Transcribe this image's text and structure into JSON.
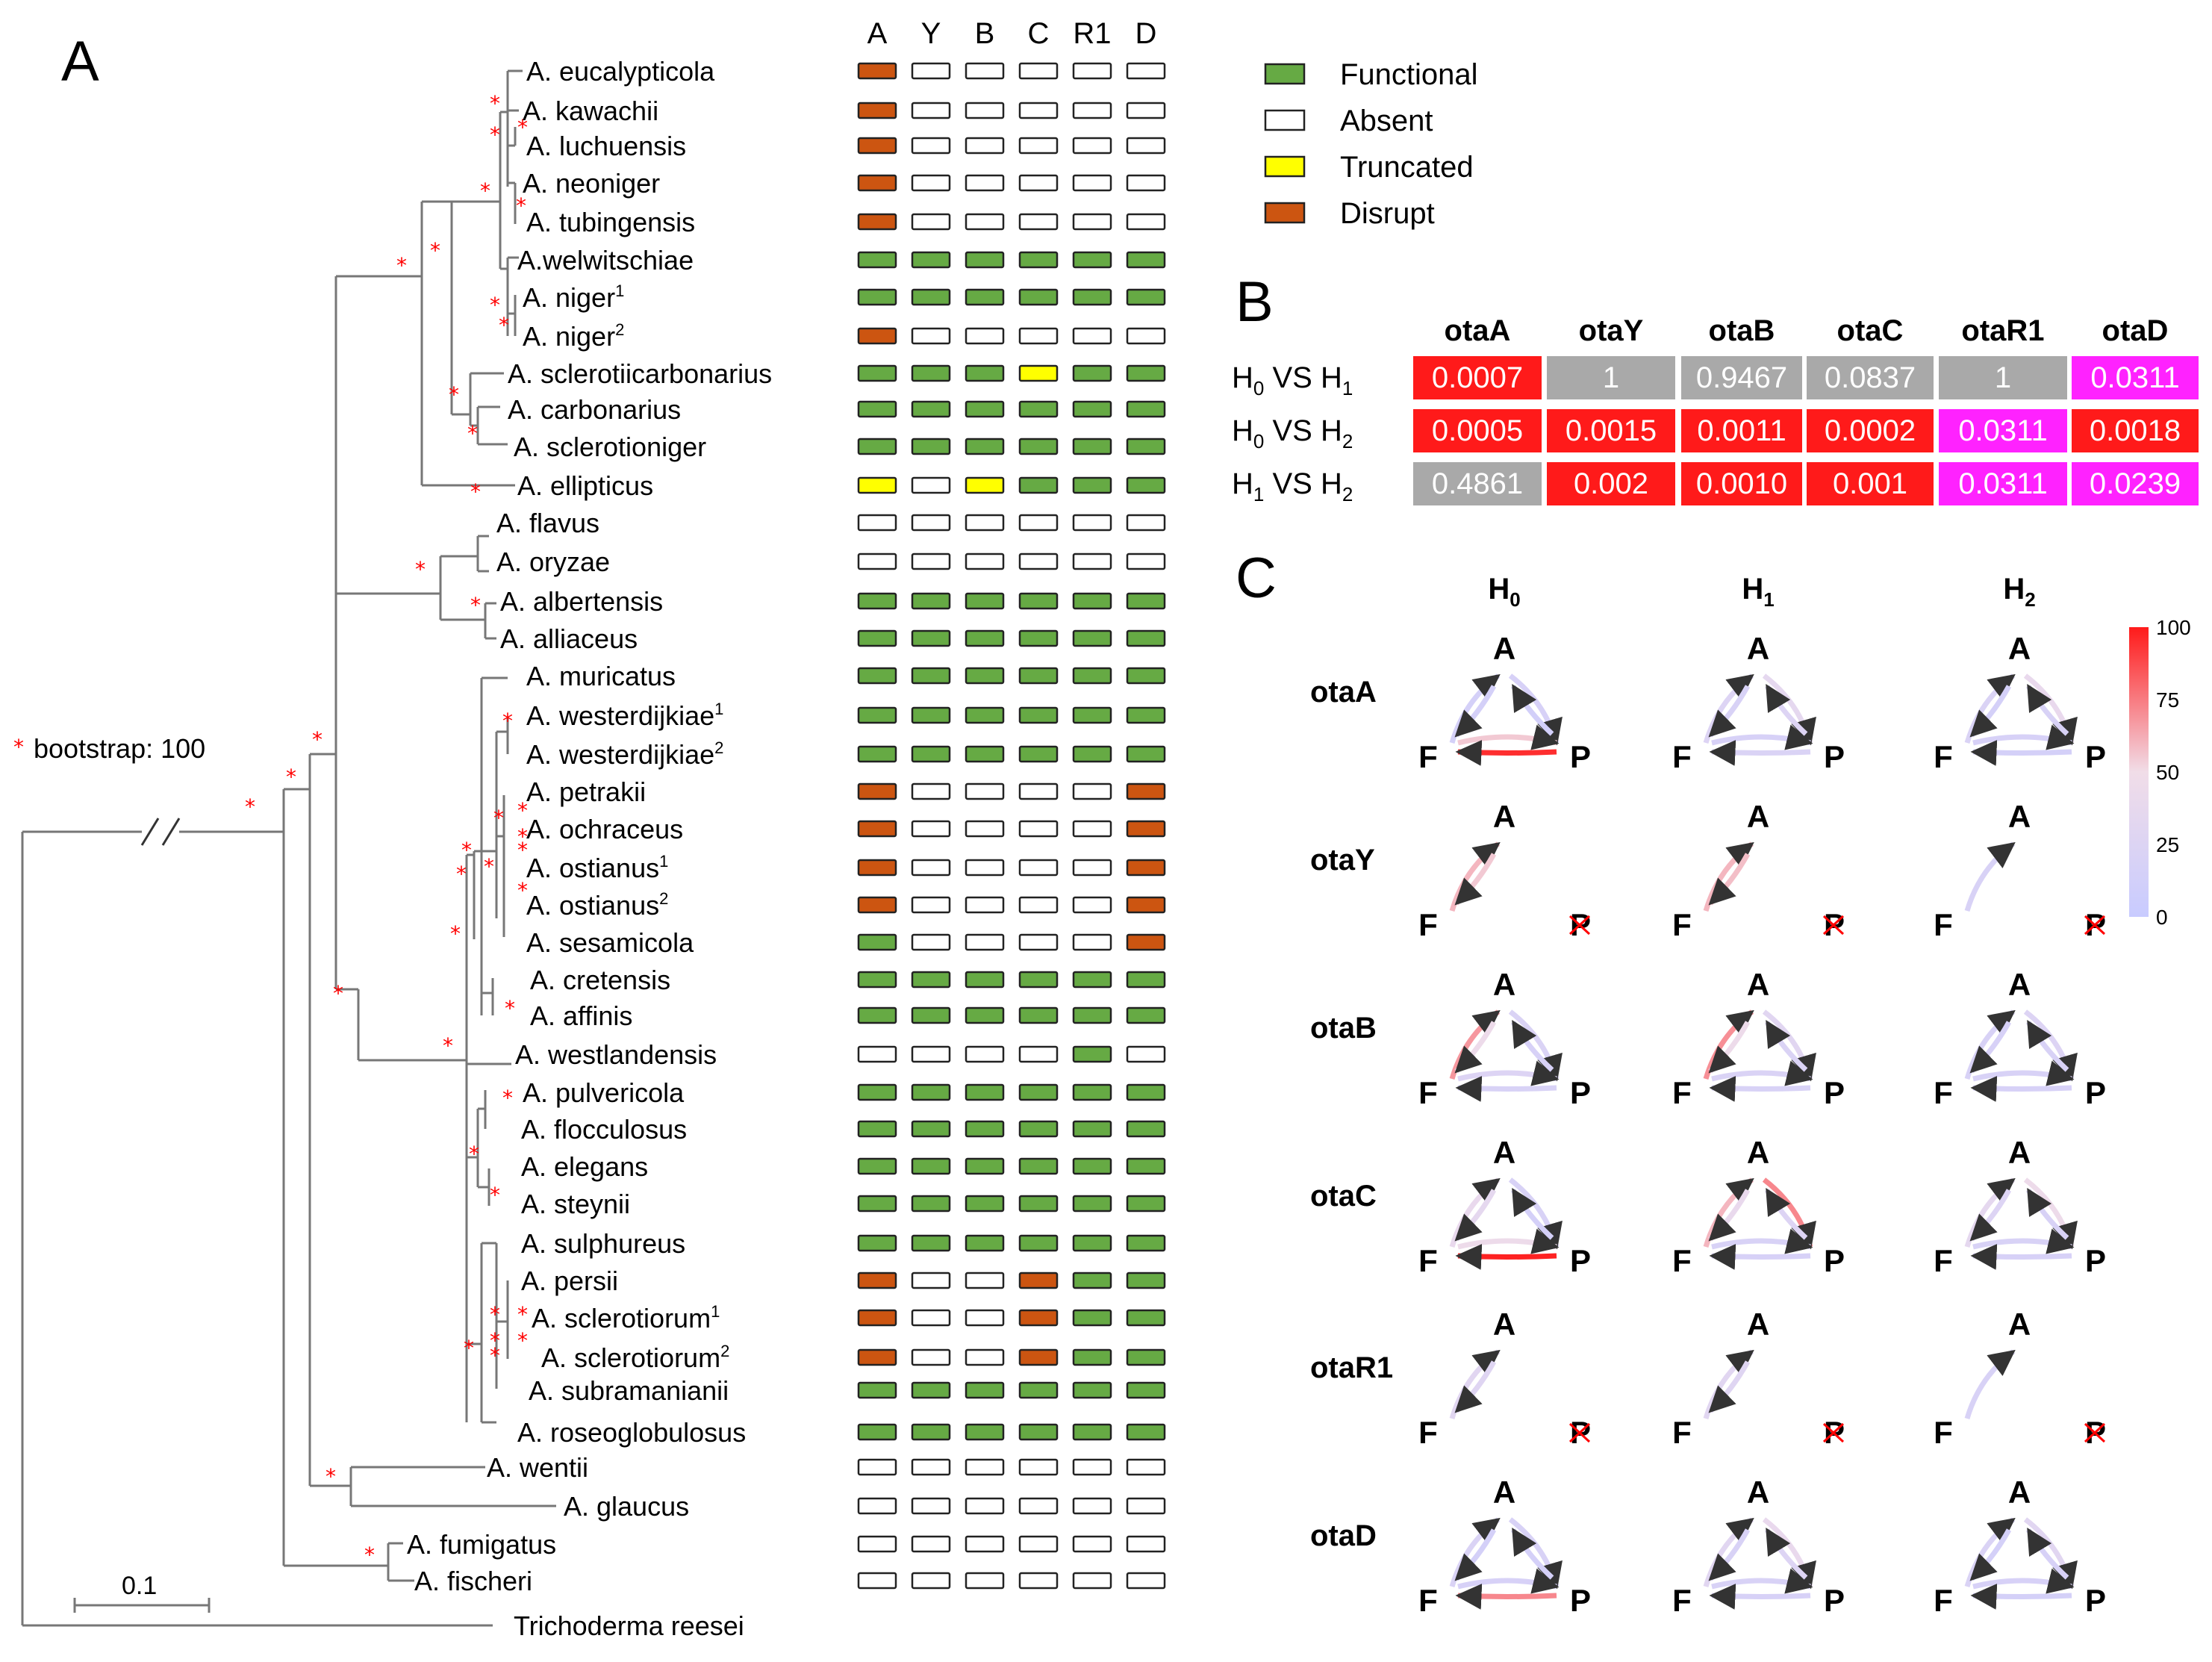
{
  "panels": {
    "a": "A",
    "b": "B",
    "c": "C"
  },
  "legend": {
    "bootstrap": "bootstrap: 100",
    "scale": "0.1",
    "items": [
      {
        "label": "Functional",
        "color": "#66aa44"
      },
      {
        "label": "Absent",
        "color": "#ffffff"
      },
      {
        "label": "Truncated",
        "color": "#ffff00"
      },
      {
        "label": "Disrupt",
        "color": "#cc5511"
      }
    ]
  },
  "status_colors": {
    "F": "#66aa44",
    "X": "#ffffff",
    "T": "#ffff00",
    "D": "#cc5511"
  },
  "gene_columns": [
    "A",
    "Y",
    "B",
    "C",
    "R1",
    "D"
  ],
  "taxa": [
    {
      "name": "A. eucalypticola",
      "sup": "",
      "status": [
        "D",
        "X",
        "X",
        "X",
        "X",
        "X"
      ]
    },
    {
      "name": "A. kawachii",
      "sup": "",
      "status": [
        "D",
        "X",
        "X",
        "X",
        "X",
        "X"
      ]
    },
    {
      "name": "A. luchuensis",
      "sup": "",
      "status": [
        "D",
        "X",
        "X",
        "X",
        "X",
        "X"
      ]
    },
    {
      "name": "A. neoniger",
      "sup": "",
      "status": [
        "D",
        "X",
        "X",
        "X",
        "X",
        "X"
      ]
    },
    {
      "name": "A. tubingensis",
      "sup": "",
      "status": [
        "D",
        "X",
        "X",
        "X",
        "X",
        "X"
      ]
    },
    {
      "name": "A.welwitschiae",
      "sup": "",
      "status": [
        "F",
        "F",
        "F",
        "F",
        "F",
        "F"
      ]
    },
    {
      "name": "A. niger",
      "sup": "1",
      "status": [
        "F",
        "F",
        "F",
        "F",
        "F",
        "F"
      ]
    },
    {
      "name": "A. niger",
      "sup": "2",
      "status": [
        "D",
        "X",
        "X",
        "X",
        "X",
        "X"
      ]
    },
    {
      "name": "A. sclerotiicarbonarius",
      "sup": "",
      "status": [
        "F",
        "F",
        "F",
        "T",
        "F",
        "F"
      ]
    },
    {
      "name": "A. carbonarius",
      "sup": "",
      "status": [
        "F",
        "F",
        "F",
        "F",
        "F",
        "F"
      ]
    },
    {
      "name": "A. sclerotioniger",
      "sup": "",
      "status": [
        "F",
        "F",
        "F",
        "F",
        "F",
        "F"
      ]
    },
    {
      "name": "A. ellipticus",
      "sup": "",
      "status": [
        "T",
        "X",
        "T",
        "F",
        "F",
        "F"
      ]
    },
    {
      "name": "A. flavus",
      "sup": "",
      "status": [
        "X",
        "X",
        "X",
        "X",
        "X",
        "X"
      ]
    },
    {
      "name": "A. oryzae",
      "sup": "",
      "status": [
        "X",
        "X",
        "X",
        "X",
        "X",
        "X"
      ]
    },
    {
      "name": "A. albertensis",
      "sup": "",
      "status": [
        "F",
        "F",
        "F",
        "F",
        "F",
        "F"
      ]
    },
    {
      "name": "A. alliaceus",
      "sup": "",
      "status": [
        "F",
        "F",
        "F",
        "F",
        "F",
        "F"
      ]
    },
    {
      "name": "A. muricatus",
      "sup": "",
      "status": [
        "F",
        "F",
        "F",
        "F",
        "F",
        "F"
      ]
    },
    {
      "name": "A. westerdijkiae",
      "sup": "1",
      "status": [
        "F",
        "F",
        "F",
        "F",
        "F",
        "F"
      ]
    },
    {
      "name": "A. westerdijkiae",
      "sup": "2",
      "status": [
        "F",
        "F",
        "F",
        "F",
        "F",
        "F"
      ]
    },
    {
      "name": "A. petrakii",
      "sup": "",
      "status": [
        "D",
        "X",
        "X",
        "X",
        "X",
        "D"
      ]
    },
    {
      "name": "A. ochraceus",
      "sup": "",
      "status": [
        "D",
        "X",
        "X",
        "X",
        "X",
        "D"
      ]
    },
    {
      "name": "A. ostianus",
      "sup": "1",
      "status": [
        "D",
        "X",
        "X",
        "X",
        "X",
        "D"
      ]
    },
    {
      "name": "A. ostianus",
      "sup": "2",
      "status": [
        "D",
        "X",
        "X",
        "X",
        "X",
        "D"
      ]
    },
    {
      "name": "A. sesamicola",
      "sup": "",
      "status": [
        "F",
        "X",
        "X",
        "X",
        "X",
        "D"
      ]
    },
    {
      "name": "A. cretensis",
      "sup": "",
      "status": [
        "F",
        "F",
        "F",
        "F",
        "F",
        "F"
      ]
    },
    {
      "name": "A. affinis",
      "sup": "",
      "status": [
        "F",
        "F",
        "F",
        "F",
        "F",
        "F"
      ]
    },
    {
      "name": "A. westlandensis",
      "sup": "",
      "status": [
        "X",
        "X",
        "X",
        "X",
        "F",
        "X"
      ]
    },
    {
      "name": "A. pulvericola",
      "sup": "",
      "status": [
        "F",
        "F",
        "F",
        "F",
        "F",
        "F"
      ]
    },
    {
      "name": "A. flocculosus",
      "sup": "",
      "status": [
        "F",
        "F",
        "F",
        "F",
        "F",
        "F"
      ]
    },
    {
      "name": "A. elegans",
      "sup": "",
      "status": [
        "F",
        "F",
        "F",
        "F",
        "F",
        "F"
      ]
    },
    {
      "name": "A. steynii",
      "sup": "",
      "status": [
        "F",
        "F",
        "F",
        "F",
        "F",
        "F"
      ]
    },
    {
      "name": "A. sulphureus",
      "sup": "",
      "status": [
        "F",
        "F",
        "F",
        "F",
        "F",
        "F"
      ]
    },
    {
      "name": "A. persii",
      "sup": "",
      "status": [
        "D",
        "X",
        "X",
        "D",
        "F",
        "F"
      ]
    },
    {
      "name": "A. sclerotiorum",
      "sup": "1",
      "status": [
        "D",
        "X",
        "X",
        "D",
        "F",
        "F"
      ]
    },
    {
      "name": "A. sclerotiorum",
      "sup": "2",
      "status": [
        "D",
        "X",
        "X",
        "D",
        "F",
        "F"
      ]
    },
    {
      "name": "A. subramanianii",
      "sup": "",
      "status": [
        "F",
        "F",
        "F",
        "F",
        "F",
        "F"
      ]
    },
    {
      "name": "A. roseoglobulosus",
      "sup": "",
      "status": [
        "F",
        "F",
        "F",
        "F",
        "F",
        "F"
      ]
    },
    {
      "name": "A. wentii",
      "sup": "",
      "status": [
        "X",
        "X",
        "X",
        "X",
        "X",
        "X"
      ]
    },
    {
      "name": "A. glaucus",
      "sup": "",
      "status": [
        "X",
        "X",
        "X",
        "X",
        "X",
        "X"
      ]
    },
    {
      "name": "A. fumigatus",
      "sup": "",
      "status": [
        "X",
        "X",
        "X",
        "X",
        "X",
        "X"
      ]
    },
    {
      "name": "A. fischeri",
      "sup": "",
      "status": [
        "X",
        "X",
        "X",
        "X",
        "X",
        "X"
      ]
    }
  ],
  "outgroup": "Trichoderma reesei",
  "table_b": {
    "columns": [
      "otaA",
      "otaY",
      "otaB",
      "otaC",
      "otaR1",
      "otaD"
    ],
    "rows": [
      {
        "label": {
          "a": "H",
          "a_sub": "0",
          "vs": " VS ",
          "b": "H",
          "b_sub": "1"
        },
        "values": [
          "0.0007",
          "1",
          "0.9467",
          "0.0837",
          "1",
          "0.0311"
        ],
        "colors": [
          "#ff1a1a",
          "#a9a9a9",
          "#a9a9a9",
          "#a9a9a9",
          "#a9a9a9",
          "#ff22ff"
        ]
      },
      {
        "label": {
          "a": "H",
          "a_sub": "0",
          "vs": " VS ",
          "b": "H",
          "b_sub": "2"
        },
        "values": [
          "0.0005",
          "0.0015",
          "0.0011",
          "0.0002",
          "0.0311",
          "0.0018"
        ],
        "colors": [
          "#ff1a1a",
          "#ff1a1a",
          "#ff1a1a",
          "#ff1a1a",
          "#ff22ff",
          "#ff1a1a"
        ]
      },
      {
        "label": {
          "a": "H",
          "a_sub": "1",
          "vs": " VS ",
          "b": "H",
          "b_sub": "2"
        },
        "values": [
          "0.4861",
          "0.002",
          "0.0010",
          "0.001",
          "0.0311",
          "0.0239"
        ],
        "colors": [
          "#a9a9a9",
          "#ff1a1a",
          "#ff1a1a",
          "#ff1a1a",
          "#ff22ff",
          "#ff22ff"
        ]
      }
    ]
  },
  "panel_c": {
    "models": [
      {
        "letter": "H",
        "sub": "0"
      },
      {
        "letter": "H",
        "sub": "1"
      },
      {
        "letter": "H",
        "sub": "2"
      }
    ],
    "node_labels": {
      "a": "A",
      "f": "F",
      "p": "P"
    },
    "colorbar": {
      "ticks": [
        "100",
        "75",
        "50",
        "25",
        "0"
      ],
      "min": 0,
      "max": 100
    },
    "genes": [
      {
        "name": "otaA",
        "models": [
          {
            "FA": 15,
            "AF": 15,
            "AP": 18,
            "PA": 12,
            "FP": 55,
            "PF": 95,
            "p_absent": false
          },
          {
            "FA": 25,
            "AF": 20,
            "AP": 35,
            "PA": 25,
            "FP": 18,
            "PF": 22,
            "p_absent": false
          },
          {
            "FA": 22,
            "AF": 15,
            "AP": 40,
            "PA": 20,
            "FP": 18,
            "PF": 15,
            "p_absent": false
          }
        ]
      },
      {
        "name": "otaY",
        "models": [
          {
            "FA": 60,
            "AF": 55,
            "AP": 0,
            "PA": 0,
            "FP": 0,
            "PF": 0,
            "p_absent": true
          },
          {
            "FA": 60,
            "AF": 58,
            "AP": 0,
            "PA": 0,
            "FP": 0,
            "PF": 0,
            "p_absent": true
          },
          {
            "FA": 20,
            "AF": 0,
            "AP": 0,
            "PA": 0,
            "FP": 0,
            "PF": 0,
            "p_absent": true
          }
        ]
      },
      {
        "name": "otaB",
        "models": [
          {
            "FA": 68,
            "AF": 45,
            "AP": 22,
            "PA": 18,
            "FP": 25,
            "PF": 20,
            "p_absent": false
          },
          {
            "FA": 70,
            "AF": 45,
            "AP": 30,
            "PA": 22,
            "FP": 22,
            "PF": 20,
            "p_absent": false
          },
          {
            "FA": 20,
            "AF": 18,
            "AP": 25,
            "PA": 20,
            "FP": 20,
            "PF": 18,
            "p_absent": false
          }
        ]
      },
      {
        "name": "otaC",
        "models": [
          {
            "FA": 40,
            "AF": 35,
            "AP": 20,
            "PA": 15,
            "FP": 45,
            "PF": 98,
            "p_absent": false
          },
          {
            "FA": 60,
            "AF": 40,
            "AP": 72,
            "PA": 25,
            "FP": 20,
            "PF": 18,
            "p_absent": false
          },
          {
            "FA": 35,
            "AF": 25,
            "AP": 45,
            "PA": 20,
            "FP": 20,
            "PF": 18,
            "p_absent": false
          }
        ]
      },
      {
        "name": "otaR1",
        "models": [
          {
            "FA": 30,
            "AF": 28,
            "AP": 0,
            "PA": 0,
            "FP": 0,
            "PF": 0,
            "p_absent": true
          },
          {
            "FA": 30,
            "AF": 28,
            "AP": 0,
            "PA": 0,
            "FP": 0,
            "PF": 0,
            "p_absent": true
          },
          {
            "FA": 20,
            "AF": 0,
            "AP": 0,
            "PA": 0,
            "FP": 0,
            "PF": 0,
            "p_absent": true
          }
        ]
      },
      {
        "name": "otaD",
        "models": [
          {
            "FA": 22,
            "AF": 15,
            "AP": 20,
            "PA": 15,
            "FP": 18,
            "PF": 72,
            "p_absent": false
          },
          {
            "FA": 30,
            "AF": 20,
            "AP": 40,
            "PA": 25,
            "FP": 20,
            "PF": 18,
            "p_absent": false
          },
          {
            "FA": 22,
            "AF": 15,
            "AP": 30,
            "PA": 18,
            "FP": 18,
            "PF": 15,
            "p_absent": false
          }
        ]
      }
    ]
  }
}
